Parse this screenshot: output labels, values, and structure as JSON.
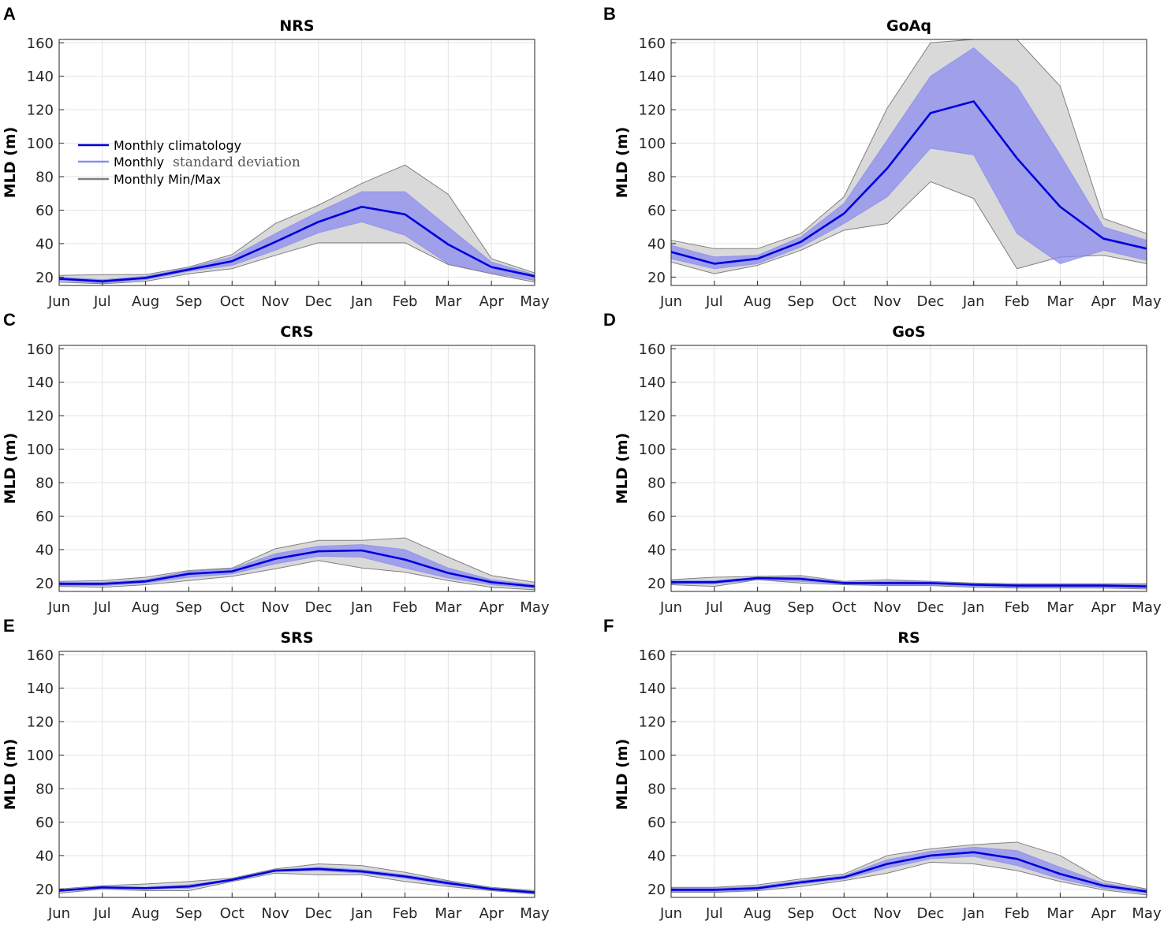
{
  "legend": {
    "climatology": "Monthly climatology",
    "std_prefix": "Monthly",
    "std_suffix": "standard deviation",
    "minmax": "Monthly Min/Max"
  },
  "colors": {
    "mean": "#0000dd",
    "std_fill": "#8c8cf0",
    "std_line": "#8080f0",
    "minmax_fill": "#d9d9d9",
    "minmax_line": "#808080"
  },
  "chart_data": [
    {
      "type": "line",
      "panel": "A",
      "title": "NRS",
      "ylabel": "MLD (m)",
      "categories": [
        "Jun",
        "Jul",
        "Aug",
        "Sep",
        "Oct",
        "Nov",
        "Dec",
        "Jan",
        "Feb",
        "Mar",
        "Apr",
        "May"
      ],
      "yticks": [
        20,
        40,
        60,
        80,
        100,
        120,
        140,
        160
      ],
      "ylim": [
        15,
        162
      ],
      "grid": true,
      "legend_position": "upper-left",
      "series": [
        {
          "name": "Monthly climatology",
          "values": [
            19,
            17.5,
            19.5,
            24.5,
            29.5,
            41,
            53,
            62,
            57.5,
            39.5,
            26,
            20.5
          ]
        },
        {
          "name": "Std low",
          "values": [
            18,
            16.5,
            18.5,
            23.5,
            27,
            36,
            46.5,
            53,
            45,
            28,
            22.5,
            18
          ]
        },
        {
          "name": "Std high",
          "values": [
            20,
            18.5,
            20.5,
            25.5,
            32,
            46,
            59,
            71,
            71,
            50,
            29,
            21.5
          ]
        },
        {
          "name": "Min",
          "values": [
            17,
            16,
            17.5,
            22,
            25,
            33,
            40.5,
            40.5,
            40.5,
            27.5,
            22,
            17
          ]
        },
        {
          "name": "Max",
          "values": [
            21,
            21.5,
            21.5,
            26,
            33.5,
            52,
            63,
            76,
            87,
            69.5,
            31,
            22.5
          ]
        }
      ]
    },
    {
      "type": "line",
      "panel": "B",
      "title": "GoAq",
      "ylabel": "MLD (m)",
      "categories": [
        "Jun",
        "Jul",
        "Aug",
        "Sep",
        "Oct",
        "Nov",
        "Dec",
        "Jan",
        "Feb",
        "Mar",
        "Apr",
        "May"
      ],
      "yticks": [
        20,
        40,
        60,
        80,
        100,
        120,
        140,
        160
      ],
      "ylim": [
        15,
        162
      ],
      "grid": true,
      "series": [
        {
          "name": "Monthly climatology",
          "values": [
            35,
            28,
            31,
            41,
            58,
            85,
            118,
            125,
            91,
            62,
            43,
            37
          ]
        },
        {
          "name": "Std low",
          "values": [
            31,
            25,
            28,
            38,
            52,
            68,
            97,
            93,
            46,
            28,
            36,
            30
          ]
        },
        {
          "name": "Std high",
          "values": [
            39,
            32,
            33,
            44,
            64,
            102,
            140,
            157,
            134,
            93,
            50,
            42
          ]
        },
        {
          "name": "Min",
          "values": [
            29,
            22,
            27,
            36,
            48,
            52,
            77,
            67,
            25,
            32,
            33,
            28
          ]
        },
        {
          "name": "Max",
          "values": [
            42,
            37,
            37,
            46,
            68,
            121,
            160,
            162,
            162,
            134,
            55,
            46
          ]
        }
      ]
    },
    {
      "type": "line",
      "panel": "C",
      "title": "CRS",
      "ylabel": "MLD (m)",
      "categories": [
        "Jun",
        "Jul",
        "Aug",
        "Sep",
        "Oct",
        "Nov",
        "Dec",
        "Jan",
        "Feb",
        "Mar",
        "Apr",
        "May"
      ],
      "yticks": [
        20,
        40,
        60,
        80,
        100,
        120,
        140,
        160
      ],
      "ylim": [
        15,
        162
      ],
      "grid": true,
      "series": [
        {
          "name": "Monthly climatology",
          "values": [
            19.5,
            19.5,
            21,
            25.5,
            27,
            34.5,
            39,
            39.5,
            34,
            26,
            20.5,
            18
          ]
        },
        {
          "name": "Std low",
          "values": [
            18.5,
            18.5,
            20,
            23.5,
            25.5,
            31.5,
            36,
            35.5,
            29,
            23,
            19,
            17
          ]
        },
        {
          "name": "Std high",
          "values": [
            20.5,
            20.5,
            22,
            27,
            28.5,
            37.5,
            42,
            43,
            40,
            29,
            22,
            19
          ]
        },
        {
          "name": "Min",
          "values": [
            18,
            17.5,
            19,
            21.5,
            24,
            28.5,
            33.5,
            29,
            26.5,
            21.5,
            17.5,
            16
          ]
        },
        {
          "name": "Max",
          "values": [
            21,
            21.5,
            23.5,
            27.5,
            29,
            40.5,
            45.5,
            45.5,
            47,
            35.5,
            24.5,
            20.5
          ]
        }
      ]
    },
    {
      "type": "line",
      "panel": "D",
      "title": "GoS",
      "ylabel": "MLD (m)",
      "categories": [
        "Jun",
        "Jul",
        "Aug",
        "Sep",
        "Oct",
        "Nov",
        "Dec",
        "Jan",
        "Feb",
        "Mar",
        "Apr",
        "May"
      ],
      "yticks": [
        20,
        40,
        60,
        80,
        100,
        120,
        140,
        160
      ],
      "ylim": [
        15,
        162
      ],
      "grid": true,
      "series": [
        {
          "name": "Monthly climatology",
          "values": [
            20.5,
            20.5,
            23,
            22.5,
            20,
            20,
            20,
            19,
            18.5,
            18.5,
            18.5,
            18
          ]
        },
        {
          "name": "Std low",
          "values": [
            19.5,
            19.5,
            22,
            21,
            19.5,
            19,
            19,
            18,
            17.5,
            17.5,
            17.5,
            17
          ]
        },
        {
          "name": "Std high",
          "values": [
            21.5,
            21.5,
            23.5,
            23.5,
            20.5,
            21,
            21,
            19.5,
            19,
            19,
            19,
            19
          ]
        },
        {
          "name": "Min",
          "values": [
            19,
            18,
            22,
            20,
            19,
            18.5,
            18.5,
            17.5,
            17,
            17,
            17,
            16.5
          ]
        },
        {
          "name": "Max",
          "values": [
            22,
            23.5,
            24,
            24.5,
            21,
            22,
            21,
            20,
            19.5,
            19.5,
            19.5,
            19.5
          ]
        }
      ]
    },
    {
      "type": "line",
      "panel": "E",
      "title": "SRS",
      "ylabel": "MLD (m)",
      "categories": [
        "Jun",
        "Jul",
        "Aug",
        "Sep",
        "Oct",
        "Nov",
        "Dec",
        "Jan",
        "Feb",
        "Mar",
        "Apr",
        "May"
      ],
      "yticks": [
        20,
        40,
        60,
        80,
        100,
        120,
        140,
        160
      ],
      "ylim": [
        15,
        162
      ],
      "grid": true,
      "series": [
        {
          "name": "Monthly climatology",
          "values": [
            19,
            21,
            20.5,
            21.5,
            25.5,
            31,
            32,
            30.5,
            27.5,
            23.5,
            20,
            18
          ]
        },
        {
          "name": "Std low",
          "values": [
            18.5,
            20.5,
            20,
            20.5,
            25,
            30.5,
            31,
            29.5,
            26.5,
            22.5,
            19.5,
            17.5
          ]
        },
        {
          "name": "Std high",
          "values": [
            19.5,
            21.5,
            21,
            22.5,
            26,
            31.5,
            33,
            31.5,
            28.5,
            24.5,
            20.5,
            18.5
          ]
        },
        {
          "name": "Min",
          "values": [
            17.5,
            20,
            19,
            19,
            24.5,
            29.5,
            28.5,
            28.5,
            24.5,
            21.5,
            19,
            17
          ]
        },
        {
          "name": "Max",
          "values": [
            20,
            22,
            23,
            24.5,
            26.5,
            32,
            35,
            34,
            30,
            25,
            21,
            19
          ]
        }
      ]
    },
    {
      "type": "line",
      "panel": "F",
      "title": "RS",
      "ylabel": "MLD (m)",
      "categories": [
        "Jun",
        "Jul",
        "Aug",
        "Sep",
        "Oct",
        "Nov",
        "Dec",
        "Jan",
        "Feb",
        "Mar",
        "Apr",
        "May"
      ],
      "yticks": [
        20,
        40,
        60,
        80,
        100,
        120,
        140,
        160
      ],
      "ylim": [
        15,
        162
      ],
      "grid": true,
      "series": [
        {
          "name": "Monthly climatology",
          "values": [
            19.5,
            19.5,
            20.5,
            24,
            27,
            35,
            40,
            42,
            38,
            29,
            22,
            18.5
          ]
        },
        {
          "name": "Std low",
          "values": [
            18.5,
            18.5,
            19.5,
            23,
            26,
            32.5,
            38,
            39.5,
            34,
            26,
            20.5,
            17.5
          ]
        },
        {
          "name": "Std high",
          "values": [
            20.5,
            20.5,
            21.5,
            25,
            28,
            37.5,
            42.5,
            45,
            43,
            33,
            23.5,
            19.5
          ]
        },
        {
          "name": "Min",
          "values": [
            18,
            18,
            19,
            21.5,
            25,
            29.5,
            36,
            35,
            31,
            24.5,
            19.5,
            16.5
          ]
        },
        {
          "name": "Max",
          "values": [
            21,
            21,
            22.5,
            26,
            29,
            40,
            44,
            46.5,
            48,
            40,
            25,
            20
          ]
        }
      ]
    }
  ]
}
